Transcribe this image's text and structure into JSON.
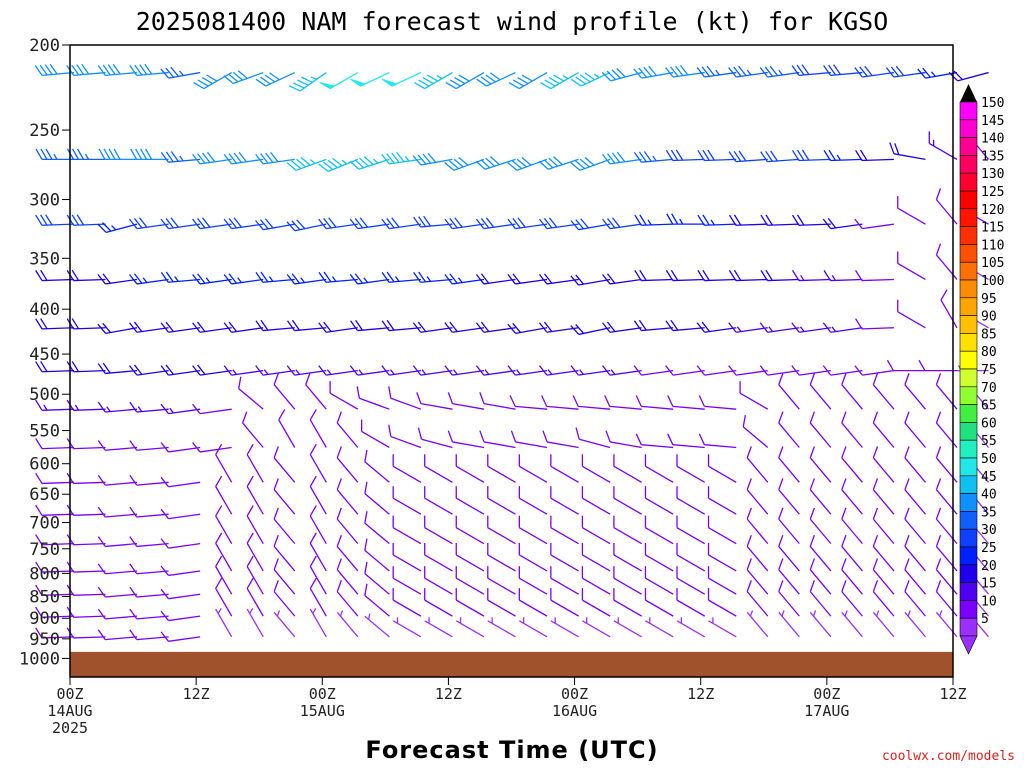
{
  "chart_data": {
    "type": "wind_barb_time_height",
    "title": "2025081400 NAM forecast wind profile (kt) for KGSO",
    "xlabel": "Forecast Time (UTC)",
    "ylabel": "",
    "y_scale": "log",
    "y_inverted": true,
    "ylim": [
      1050,
      200
    ],
    "y_ticks": [
      {
        "value": 200,
        "label": "200"
      },
      {
        "value": 250,
        "label": "250"
      },
      {
        "value": 300,
        "label": "300"
      },
      {
        "value": 350,
        "label": "350"
      },
      {
        "value": 400,
        "label": "400"
      },
      {
        "value": 450,
        "label": "450"
      },
      {
        "value": 500,
        "label": "500"
      },
      {
        "value": 550,
        "label": "550"
      },
      {
        "value": 600,
        "label": "600"
      },
      {
        "value": 650,
        "label": "650"
      },
      {
        "value": 700,
        "label": "700"
      },
      {
        "value": 750,
        "label": "750"
      },
      {
        "value": 800,
        "label": "800"
      },
      {
        "value": 850,
        "label": "850"
      },
      {
        "value": 900,
        "label": "900"
      },
      {
        "value": 950,
        "label": "950"
      },
      {
        "value": 1000,
        "label": "1000"
      }
    ],
    "xlim": [
      0,
      84
    ],
    "x_ticks": [
      {
        "value": 0,
        "lines": [
          "00Z",
          "14AUG",
          "2025"
        ]
      },
      {
        "value": 12,
        "lines": [
          "12Z"
        ]
      },
      {
        "value": 24,
        "lines": [
          "00Z",
          "15AUG"
        ]
      },
      {
        "value": 36,
        "lines": [
          "12Z"
        ]
      },
      {
        "value": 48,
        "lines": [
          "00Z",
          "16AUG"
        ]
      },
      {
        "value": 60,
        "lines": [
          "12Z"
        ]
      },
      {
        "value": 72,
        "lines": [
          "00Z",
          "17AUG"
        ]
      },
      {
        "value": 84,
        "lines": [
          "12Z"
        ]
      }
    ],
    "barb_levels": [
      215,
      270,
      320,
      370,
      420,
      470,
      520,
      575,
      630,
      685,
      740,
      795,
      845,
      895,
      945
    ],
    "time_step_hours": 3,
    "surface_pressure": 983,
    "colorbar": {
      "min": 5,
      "max": 150,
      "labels": [
        "150",
        "145",
        "140",
        "135",
        "130",
        "125",
        "120",
        "115",
        "110",
        "105",
        "100",
        "95",
        "90",
        "85",
        "80",
        "75",
        "70",
        "65",
        "60",
        "55",
        "50",
        "45",
        "40",
        "35",
        "30",
        "25",
        "20",
        "15",
        "10",
        "5"
      ],
      "colors": [
        "#ff00ff",
        "#ff00d0",
        "#ff0090",
        "#ff0060",
        "#ff0030",
        "#ff0000",
        "#ff1500",
        "#ff3000",
        "#ff5000",
        "#ff7000",
        "#ff8c00",
        "#ffa500",
        "#ffc000",
        "#ffe000",
        "#ffff00",
        "#d0ff30",
        "#90ff30",
        "#40f040",
        "#20e080",
        "#20f0c0",
        "#20e8e8",
        "#10c0f0",
        "#1090ff",
        "#1060ff",
        "#1040ff",
        "#0020ff",
        "#2000e8",
        "#5000f0",
        "#7a00ff",
        "#9a30ff"
      ]
    },
    "series": [
      {
        "level": 215,
        "speed": [
          40,
          40,
          38,
          38,
          36,
          40,
          42,
          42,
          44,
          48,
          52,
          50,
          44,
          38,
          40,
          42,
          45,
          46,
          40,
          40,
          38,
          34,
          34,
          35,
          32,
          30,
          30,
          28,
          25,
          22
        ],
        "dir": [
          265,
          265,
          265,
          265,
          260,
          240,
          250,
          245,
          235,
          240,
          245,
          245,
          240,
          240,
          245,
          240,
          240,
          245,
          255,
          260,
          262,
          262,
          262,
          262,
          265,
          265,
          262,
          262,
          260,
          255
        ]
      },
      {
        "level": 270,
        "speed": [
          35,
          35,
          38,
          38,
          37,
          40,
          40,
          42,
          45,
          46,
          45,
          44,
          40,
          38,
          42,
          42,
          42,
          42,
          38,
          36,
          30,
          30,
          32,
          30,
          28,
          26,
          22,
          18,
          15,
          12
        ],
        "dir": [
          270,
          270,
          270,
          270,
          265,
          262,
          262,
          262,
          250,
          248,
          252,
          262,
          260,
          250,
          252,
          250,
          252,
          250,
          262,
          265,
          268,
          268,
          266,
          266,
          268,
          268,
          268,
          280,
          300,
          320
        ]
      },
      {
        "level": 320,
        "speed": [
          28,
          28,
          26,
          30,
          30,
          30,
          30,
          30,
          28,
          30,
          30,
          30,
          30,
          30,
          30,
          28,
          28,
          28,
          30,
          26,
          26,
          24,
          22,
          22,
          20,
          18,
          12,
          10,
          8,
          8
        ],
        "dir": [
          268,
          268,
          255,
          262,
          262,
          262,
          262,
          260,
          258,
          262,
          262,
          262,
          265,
          262,
          262,
          262,
          262,
          260,
          262,
          268,
          270,
          268,
          268,
          268,
          268,
          262,
          262,
          300,
          320,
          300
        ]
      },
      {
        "level": 370,
        "speed": [
          22,
          22,
          22,
          24,
          24,
          25,
          25,
          25,
          24,
          24,
          24,
          24,
          24,
          24,
          22,
          22,
          22,
          22,
          20,
          20,
          20,
          18,
          18,
          18,
          16,
          15,
          12,
          8,
          8,
          6
        ],
        "dir": [
          268,
          268,
          262,
          262,
          265,
          262,
          262,
          265,
          262,
          265,
          262,
          265,
          265,
          262,
          262,
          262,
          262,
          260,
          262,
          268,
          268,
          268,
          268,
          268,
          268,
          268,
          268,
          300,
          320,
          300
        ]
      },
      {
        "level": 420,
        "speed": [
          20,
          20,
          20,
          18,
          20,
          22,
          22,
          20,
          20,
          20,
          20,
          20,
          20,
          22,
          20,
          20,
          20,
          20,
          18,
          18,
          18,
          18,
          16,
          16,
          16,
          14,
          12,
          10,
          8,
          6
        ],
        "dir": [
          268,
          268,
          260,
          262,
          262,
          262,
          262,
          265,
          265,
          262,
          265,
          265,
          262,
          262,
          262,
          260,
          262,
          258,
          262,
          265,
          265,
          262,
          262,
          262,
          262,
          262,
          268,
          300,
          330,
          300
        ]
      },
      {
        "level": 470,
        "speed": [
          18,
          18,
          18,
          18,
          18,
          18,
          15,
          15,
          15,
          15,
          15,
          15,
          15,
          15,
          15,
          15,
          15,
          15,
          15,
          12,
          12,
          10,
          10,
          10,
          10,
          10,
          10,
          8,
          8,
          6
        ],
        "dir": [
          268,
          268,
          265,
          262,
          262,
          262,
          262,
          262,
          262,
          262,
          262,
          262,
          262,
          262,
          262,
          262,
          262,
          262,
          262,
          262,
          262,
          262,
          262,
          262,
          262,
          262,
          262,
          270,
          270,
          270
        ]
      },
      {
        "level": 520,
        "speed": [
          15,
          15,
          15,
          15,
          15,
          12,
          10,
          10,
          10,
          10,
          10,
          10,
          10,
          10,
          10,
          10,
          10,
          10,
          10,
          10,
          10,
          10,
          10,
          10,
          10,
          10,
          10,
          8,
          8,
          6
        ],
        "dir": [
          268,
          268,
          265,
          265,
          262,
          262,
          310,
          320,
          320,
          300,
          290,
          290,
          280,
          280,
          280,
          275,
          275,
          275,
          275,
          275,
          275,
          275,
          300,
          320,
          320,
          320,
          320,
          320,
          320,
          320
        ]
      },
      {
        "level": 575,
        "speed": [
          12,
          12,
          12,
          12,
          12,
          10,
          10,
          10,
          10,
          10,
          10,
          10,
          10,
          10,
          10,
          10,
          10,
          10,
          10,
          10,
          10,
          10,
          10,
          10,
          10,
          10,
          10,
          8,
          8,
          6
        ],
        "dir": [
          268,
          268,
          265,
          265,
          262,
          262,
          320,
          330,
          330,
          320,
          300,
          290,
          285,
          280,
          280,
          280,
          280,
          285,
          280,
          275,
          275,
          275,
          310,
          320,
          320,
          320,
          320,
          320,
          320,
          320
        ]
      },
      {
        "level": 630,
        "speed": [
          10,
          10,
          10,
          10,
          10,
          8,
          8,
          8,
          8,
          8,
          8,
          8,
          8,
          8,
          8,
          8,
          8,
          8,
          8,
          8,
          8,
          8,
          8,
          8,
          8,
          8,
          8,
          8,
          8,
          6
        ],
        "dir": [
          268,
          268,
          265,
          265,
          262,
          330,
          330,
          320,
          330,
          320,
          310,
          300,
          300,
          300,
          300,
          300,
          300,
          300,
          300,
          300,
          300,
          300,
          320,
          320,
          320,
          320,
          320,
          320,
          320,
          320
        ]
      },
      {
        "level": 685,
        "speed": [
          10,
          10,
          10,
          10,
          10,
          8,
          8,
          8,
          8,
          8,
          8,
          8,
          8,
          8,
          8,
          8,
          8,
          8,
          8,
          8,
          8,
          8,
          8,
          8,
          8,
          8,
          8,
          8,
          8,
          6
        ],
        "dir": [
          268,
          268,
          265,
          265,
          262,
          330,
          330,
          320,
          330,
          320,
          310,
          300,
          300,
          300,
          300,
          300,
          300,
          300,
          300,
          300,
          300,
          300,
          320,
          320,
          320,
          320,
          320,
          320,
          320,
          320
        ]
      },
      {
        "level": 740,
        "speed": [
          10,
          10,
          10,
          10,
          10,
          8,
          8,
          8,
          8,
          8,
          8,
          8,
          8,
          8,
          8,
          8,
          8,
          8,
          8,
          8,
          8,
          8,
          8,
          8,
          8,
          8,
          8,
          8,
          8,
          6
        ],
        "dir": [
          268,
          268,
          265,
          265,
          262,
          330,
          330,
          320,
          330,
          320,
          310,
          300,
          300,
          300,
          300,
          300,
          300,
          300,
          300,
          300,
          300,
          300,
          320,
          320,
          320,
          320,
          320,
          320,
          320,
          320
        ]
      },
      {
        "level": 795,
        "speed": [
          10,
          10,
          10,
          10,
          10,
          8,
          8,
          8,
          8,
          8,
          8,
          8,
          8,
          8,
          8,
          8,
          8,
          8,
          8,
          8,
          8,
          8,
          8,
          8,
          8,
          8,
          8,
          8,
          8,
          6
        ],
        "dir": [
          268,
          268,
          265,
          265,
          262,
          330,
          330,
          320,
          330,
          320,
          310,
          300,
          300,
          300,
          300,
          300,
          300,
          300,
          300,
          300,
          300,
          300,
          320,
          320,
          320,
          320,
          320,
          320,
          320,
          320
        ]
      },
      {
        "level": 845,
        "speed": [
          10,
          10,
          10,
          10,
          10,
          8,
          8,
          8,
          8,
          8,
          8,
          8,
          8,
          8,
          8,
          8,
          8,
          8,
          8,
          8,
          8,
          8,
          8,
          8,
          8,
          8,
          8,
          8,
          8,
          6
        ],
        "dir": [
          268,
          268,
          265,
          265,
          262,
          330,
          330,
          320,
          330,
          320,
          310,
          300,
          300,
          300,
          300,
          300,
          300,
          300,
          300,
          300,
          300,
          300,
          320,
          320,
          320,
          320,
          320,
          320,
          320,
          320
        ]
      },
      {
        "level": 895,
        "speed": [
          10,
          10,
          10,
          10,
          10,
          8,
          8,
          8,
          8,
          8,
          8,
          8,
          8,
          8,
          8,
          8,
          8,
          8,
          8,
          8,
          8,
          8,
          8,
          8,
          8,
          8,
          8,
          8,
          8,
          6
        ],
        "dir": [
          268,
          268,
          265,
          265,
          262,
          330,
          330,
          320,
          330,
          320,
          310,
          300,
          300,
          300,
          300,
          300,
          300,
          300,
          300,
          300,
          300,
          300,
          320,
          320,
          320,
          320,
          320,
          320,
          320,
          320
        ]
      },
      {
        "level": 945,
        "speed": [
          8,
          8,
          8,
          8,
          8,
          6,
          6,
          6,
          6,
          6,
          6,
          6,
          6,
          6,
          6,
          6,
          6,
          6,
          6,
          6,
          6,
          6,
          6,
          6,
          6,
          6,
          6,
          6,
          6,
          6
        ],
        "dir": [
          268,
          268,
          265,
          265,
          262,
          330,
          330,
          320,
          330,
          320,
          310,
          300,
          300,
          300,
          300,
          300,
          300,
          300,
          300,
          300,
          300,
          300,
          320,
          320,
          320,
          320,
          320,
          320,
          320,
          320
        ]
      }
    ]
  },
  "credit": "coolwx.com/models"
}
